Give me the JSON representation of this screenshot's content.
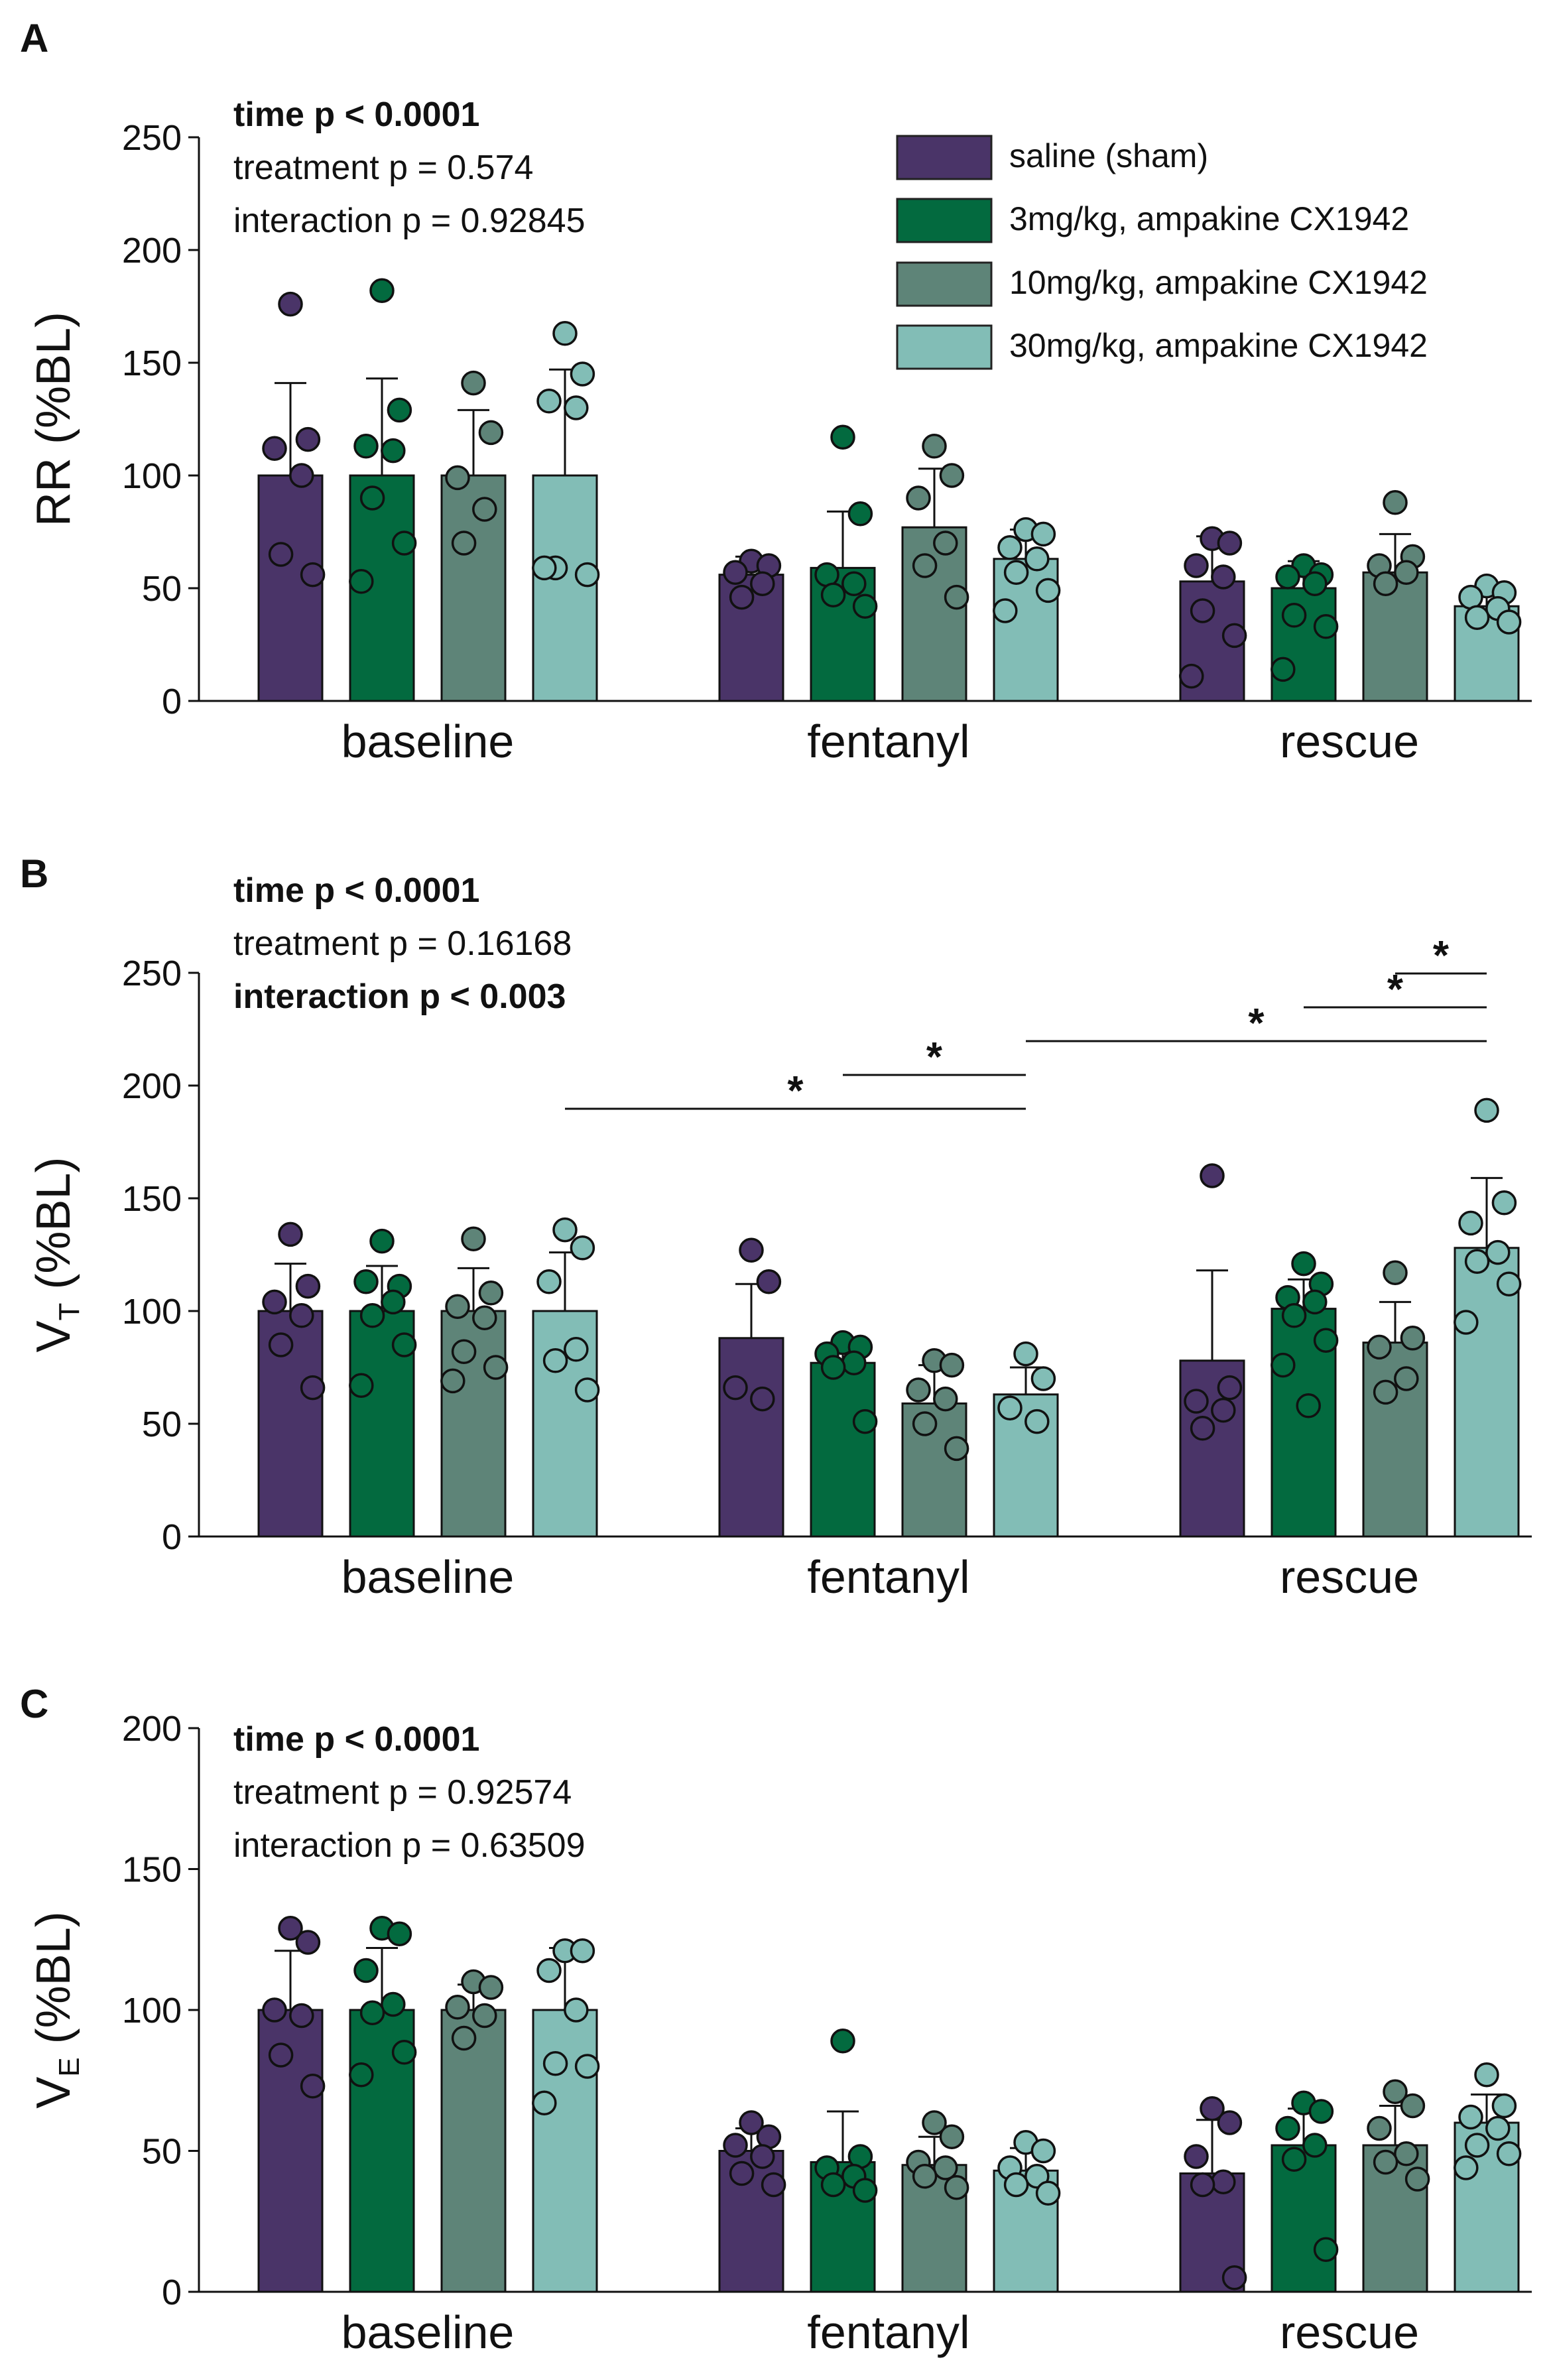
{
  "legend": [
    {
      "label": "saline (sham)",
      "color": "#4a3468"
    },
    {
      "label": "3mg/kg, ampakine CX1942",
      "color": "#036a3f"
    },
    {
      "label": "10mg/kg, ampakine CX1942",
      "color": "#5e8478"
    },
    {
      "label": "30mg/kg, ampakine CX1942",
      "color": "#82bdb6"
    }
  ],
  "chart_data": [
    {
      "panel": "A",
      "type": "bar",
      "ylabel": "RR (%BL)",
      "ylabel_main": "RR (%BL)",
      "ylabel_sub": "",
      "ylabel_suffix": "",
      "ylim": [
        0,
        250
      ],
      "yticks": [
        0,
        50,
        100,
        150,
        200,
        250
      ],
      "categories": [
        "baseline",
        "fentanyl",
        "rescue"
      ],
      "stats": [
        {
          "text": "time p < 0.0001",
          "bold": true
        },
        {
          "text": "treatment p = 0.574",
          "bold": false
        },
        {
          "text": "interaction p = 0.92845",
          "bold": false
        }
      ],
      "series": [
        {
          "name": "saline (sham)",
          "values": [
            100,
            56,
            53
          ],
          "sd": [
            41,
            8,
            20
          ],
          "points": [
            [
              176,
              116,
              112,
              100,
              65,
              56
            ],
            [
              62,
              60,
              57,
              52,
              46
            ],
            [
              72,
              70,
              60,
              55,
              40,
              29,
              11
            ]
          ]
        },
        {
          "name": "3mg/kg, ampakine CX1942",
          "values": [
            100,
            59,
            50
          ],
          "sd": [
            43,
            25,
            12
          ],
          "points": [
            [
              182,
              129,
              113,
              111,
              90,
              70,
              53
            ],
            [
              117,
              83,
              56,
              52,
              47,
              42
            ],
            [
              60,
              56,
              55,
              52,
              38,
              33,
              14
            ]
          ]
        },
        {
          "name": "10mg/kg, ampakine CX1942",
          "values": [
            100,
            77,
            57
          ],
          "sd": [
            29,
            26,
            17
          ],
          "points": [
            [
              141,
              119,
              99,
              85,
              70
            ],
            [
              113,
              100,
              90,
              70,
              60,
              46
            ],
            [
              88,
              64,
              60,
              57,
              52
            ]
          ]
        },
        {
          "name": "30mg/kg, ampakine CX1942",
          "values": [
            100,
            63,
            42
          ],
          "sd": [
            47,
            13,
            8
          ],
          "points": [
            [
              163,
              145,
              133,
              130,
              59,
              56,
              59
            ],
            [
              76,
              74,
              68,
              63,
              57,
              49,
              40
            ],
            [
              51,
              48,
              46,
              41,
              37,
              35
            ]
          ]
        }
      ],
      "significance": []
    },
    {
      "panel": "B",
      "type": "bar",
      "ylabel": "VT (%BL)",
      "ylabel_main": "V",
      "ylabel_sub": "T",
      "ylabel_suffix": " (%BL)",
      "ylim": [
        0,
        250
      ],
      "yticks": [
        0,
        50,
        100,
        150,
        200,
        250
      ],
      "categories": [
        "baseline",
        "fentanyl",
        "rescue"
      ],
      "stats": [
        {
          "text": "time p < 0.0001",
          "bold": true
        },
        {
          "text": "treatment p = 0.16168",
          "bold": false
        },
        {
          "text": "interaction p < 0.003",
          "bold": true
        }
      ],
      "series": [
        {
          "name": "saline (sham)",
          "values": [
            100,
            88,
            78
          ],
          "sd": [
            21,
            24,
            40
          ],
          "points": [
            [
              134,
              111,
              104,
              98,
              85,
              66
            ],
            [
              127,
              113,
              66,
              61
            ],
            [
              160,
              66,
              60,
              56,
              48
            ]
          ]
        },
        {
          "name": "3mg/kg, ampakine CX1942",
          "values": [
            100,
            77,
            101
          ],
          "sd": [
            20,
            9,
            13
          ],
          "points": [
            [
              131,
              111,
              113,
              104,
              98,
              85,
              67
            ],
            [
              86,
              84,
              81,
              77,
              75,
              51
            ],
            [
              121,
              112,
              106,
              104,
              98,
              87,
              76,
              58
            ]
          ]
        },
        {
          "name": "10mg/kg, ampakine CX1942",
          "values": [
            100,
            59,
            86
          ],
          "sd": [
            19,
            17,
            18
          ],
          "points": [
            [
              132,
              108,
              102,
              97,
              82,
              75,
              69
            ],
            [
              78,
              76,
              65,
              61,
              50,
              39
            ],
            [
              117,
              88,
              84,
              70,
              64
            ]
          ]
        },
        {
          "name": "30mg/kg, ampakine CX1942",
          "values": [
            100,
            63,
            128
          ],
          "sd": [
            26,
            12,
            31
          ],
          "points": [
            [
              136,
              128,
              113,
              83,
              78,
              65
            ],
            [
              81,
              70,
              57,
              51
            ],
            [
              189,
              148,
              139,
              126,
              122,
              112,
              95
            ]
          ]
        }
      ],
      "significance": [
        {
          "from": {
            "group": 0,
            "series": 3
          },
          "to": {
            "group": 1,
            "series": 3
          },
          "level": 0,
          "label": "*"
        },
        {
          "from": {
            "group": 1,
            "series": 1
          },
          "to": {
            "group": 1,
            "series": 3
          },
          "level": 1,
          "label": "*"
        },
        {
          "from": {
            "group": 1,
            "series": 3
          },
          "to": {
            "group": 2,
            "series": 3
          },
          "level": 2,
          "label": "*"
        },
        {
          "from": {
            "group": 2,
            "series": 1
          },
          "to": {
            "group": 2,
            "series": 3
          },
          "level": 3,
          "label": "*"
        },
        {
          "from": {
            "group": 2,
            "series": 2
          },
          "to": {
            "group": 2,
            "series": 3
          },
          "level": 4,
          "label": "*"
        }
      ]
    },
    {
      "panel": "C",
      "type": "bar",
      "ylabel": "VE (%BL)",
      "ylabel_main": "V",
      "ylabel_sub": "E",
      "ylabel_suffix": " (%BL)",
      "ylim": [
        0,
        200
      ],
      "yticks": [
        0,
        50,
        100,
        150,
        200
      ],
      "categories": [
        "baseline",
        "fentanyl",
        "rescue"
      ],
      "stats": [
        {
          "text": "time p < 0.0001",
          "bold": true
        },
        {
          "text": "treatment p = 0.92574",
          "bold": false
        },
        {
          "text": "interaction p = 0.63509",
          "bold": false
        }
      ],
      "series": [
        {
          "name": "saline (sham)",
          "values": [
            100,
            50,
            42
          ],
          "sd": [
            21,
            8,
            19
          ],
          "points": [
            [
              129,
              124,
              100,
              98,
              84,
              73
            ],
            [
              60,
              55,
              52,
              48,
              42,
              38
            ],
            [
              65,
              60,
              48,
              39,
              38,
              5
            ]
          ]
        },
        {
          "name": "3mg/kg, ampakine CX1942",
          "values": [
            100,
            46,
            52
          ],
          "sd": [
            22,
            18,
            13
          ],
          "points": [
            [
              129,
              127,
              114,
              102,
              99,
              85,
              77
            ],
            [
              89,
              48,
              44,
              41,
              38,
              36
            ],
            [
              67,
              64,
              58,
              52,
              47,
              15
            ]
          ]
        },
        {
          "name": "10mg/kg, ampakine CX1942",
          "values": [
            100,
            45,
            52
          ],
          "sd": [
            9,
            10,
            14
          ],
          "points": [
            [
              110,
              108,
              101,
              98,
              90
            ],
            [
              60,
              55,
              46,
              44,
              41,
              37
            ],
            [
              71,
              66,
              58,
              49,
              46,
              40
            ]
          ]
        },
        {
          "name": "30mg/kg, ampakine CX1942",
          "values": [
            100,
            43,
            60
          ],
          "sd": [
            22,
            8,
            10
          ],
          "points": [
            [
              121,
              121,
              114,
              100,
              81,
              80,
              67
            ],
            [
              53,
              50,
              44,
              41,
              38,
              35
            ],
            [
              77,
              66,
              62,
              58,
              52,
              49,
              44
            ]
          ]
        }
      ],
      "significance": []
    }
  ]
}
